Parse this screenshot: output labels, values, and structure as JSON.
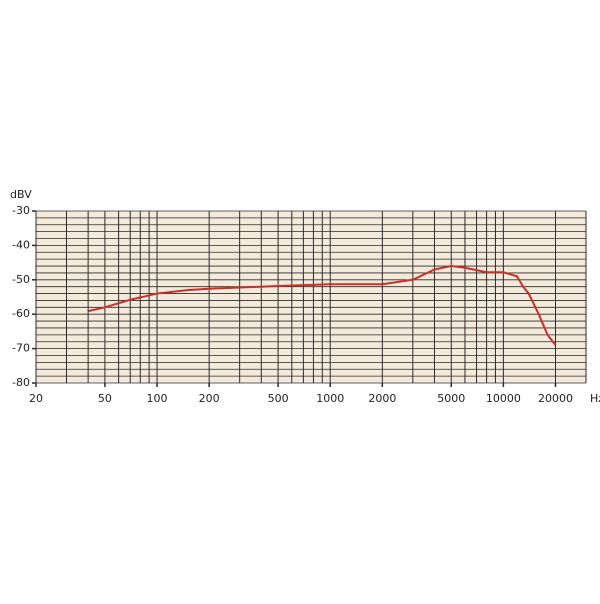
{
  "chart_data": {
    "type": "line",
    "ylabel": "dBV",
    "xlabel": "Hz",
    "log_x": true,
    "xlim": [
      20,
      30000
    ],
    "ylim": [
      -80,
      -30
    ],
    "xticks": [
      20,
      50,
      100,
      200,
      500,
      1000,
      2000,
      5000,
      10000,
      20000
    ],
    "yticks": [
      -30,
      -40,
      -50,
      -60,
      -70,
      -80
    ],
    "xgrid": [
      20,
      30,
      40,
      50,
      60,
      70,
      80,
      90,
      100,
      200,
      300,
      400,
      500,
      600,
      700,
      800,
      900,
      1000,
      2000,
      3000,
      4000,
      5000,
      6000,
      7000,
      8000,
      9000,
      10000,
      20000,
      30000
    ],
    "ygrid": [
      -80,
      -78,
      -76,
      -74,
      -72,
      -70,
      -68,
      -66,
      -64,
      -62,
      -60,
      -58,
      -56,
      -54,
      -52,
      -50,
      -48,
      -46,
      -44,
      -42,
      -40,
      -38,
      -36,
      -34,
      -32,
      -30
    ],
    "color": "#c8302a",
    "grid_color": "#2b2b2b",
    "x": [
      40,
      50,
      70,
      100,
      150,
      200,
      500,
      1000,
      2000,
      3000,
      4000,
      5000,
      6000,
      8000,
      10000,
      12000,
      13000,
      14000,
      16000,
      18000,
      20000
    ],
    "values": [
      -59.1,
      -58,
      -55.8,
      -54,
      -53,
      -52.6,
      -51.8,
      -51.3,
      -51.3,
      -50,
      -47,
      -46,
      -46.5,
      -47.8,
      -47.8,
      -49,
      -52,
      -54,
      -60,
      -66,
      -69
    ]
  }
}
